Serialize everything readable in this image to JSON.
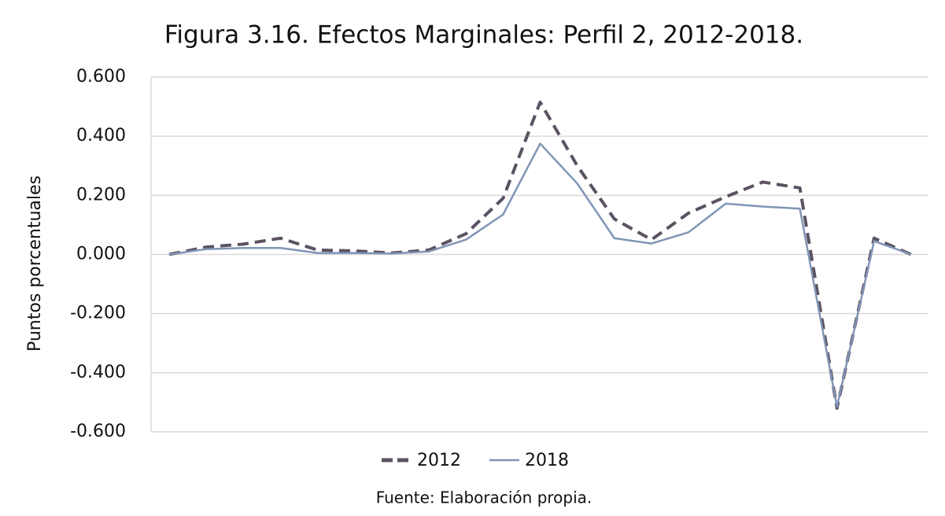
{
  "chart_data": {
    "type": "line",
    "title": "Figura 3.16. Efectos Marginales: Perfil 2, 2012-2018.",
    "y_label": "Puntos porcentuales",
    "source": "Fuente: Elaboración propia.",
    "categories": [
      null,
      null,
      null,
      null,
      null,
      null,
      null,
      null,
      null,
      null,
      null,
      null,
      null,
      null,
      null,
      null,
      null,
      null,
      null,
      null,
      null
    ],
    "series": [
      {
        "name": "2012",
        "color": "#5b5262",
        "dashed": true,
        "values": [
          0.0,
          0.025,
          0.035,
          0.055,
          0.015,
          0.012,
          0.005,
          0.015,
          0.07,
          0.19,
          0.515,
          0.3,
          0.12,
          0.05,
          0.14,
          0.195,
          0.245,
          0.225,
          -0.52,
          0.055,
          0.0
        ]
      },
      {
        "name": "2018",
        "color": "#8095b6",
        "dashed": false,
        "values": [
          0.0,
          0.018,
          0.022,
          0.022,
          0.005,
          0.005,
          0.003,
          0.01,
          0.05,
          0.135,
          0.375,
          0.24,
          0.055,
          0.037,
          0.075,
          0.172,
          0.162,
          0.155,
          -0.515,
          0.045,
          0.0
        ]
      }
    ],
    "ylim": [
      -0.6,
      0.6
    ],
    "yticks": [
      {
        "value": -0.6,
        "label": "-0.600"
      },
      {
        "value": -0.4,
        "label": "-0.400"
      },
      {
        "value": -0.2,
        "label": "-0.200"
      },
      {
        "value": 0,
        "label": "0.000"
      },
      {
        "value": 0.2,
        "label": "0.200"
      },
      {
        "value": 0.4,
        "label": "0.400"
      },
      {
        "value": 0.6,
        "label": "0.600"
      }
    ],
    "grid": true,
    "legend": "bottom"
  }
}
